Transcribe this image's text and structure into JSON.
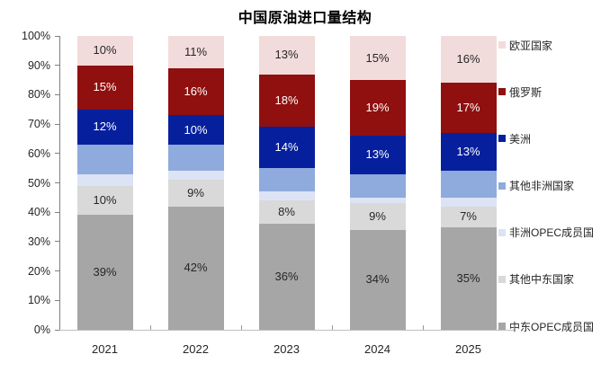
{
  "title": "中国原油进口量结构",
  "chart_data": {
    "type": "bar",
    "subtype": "stacked-percent-column",
    "title": "中国原油进口量结构",
    "categories": [
      "2021",
      "2022",
      "2023",
      "2024",
      "2025"
    ],
    "unit": "%",
    "stack_order": "bottom_to_top",
    "series": [
      {
        "name": "中东OPEC成员国",
        "color": "#a6a6a6",
        "label_color": "#262626",
        "labeled": true,
        "values": [
          39,
          42,
          36,
          34,
          35
        ]
      },
      {
        "name": "其他中东国家",
        "color": "#d9d9d9",
        "label_color": "#262626",
        "labeled": true,
        "values": [
          10,
          9,
          8,
          9,
          7
        ]
      },
      {
        "name": "非洲OPEC成员国",
        "color": "#dce3f5",
        "labeled": false,
        "values_estimated": true,
        "values": [
          4,
          3,
          3,
          2,
          3
        ]
      },
      {
        "name": "其他非洲国家",
        "color": "#8faadc",
        "labeled": false,
        "values_estimated": true,
        "values": [
          10,
          9,
          8,
          8,
          9
        ]
      },
      {
        "name": "美洲",
        "color": "#06209d",
        "label_color": "#ffffff",
        "labeled": true,
        "values": [
          12,
          10,
          14,
          13,
          13
        ]
      },
      {
        "name": "俄罗斯",
        "color": "#8f100f",
        "label_color": "#ffffff",
        "labeled": true,
        "values": [
          15,
          16,
          18,
          19,
          17
        ]
      },
      {
        "name": "欧亚国家",
        "color": "#f2dcdb",
        "label_color": "#262626",
        "labeled": true,
        "values": [
          10,
          11,
          13,
          15,
          16
        ]
      }
    ],
    "y_axis": {
      "min": 0,
      "max": 100,
      "tick_labels": [
        "0%",
        "10%",
        "20%",
        "30%",
        "40%",
        "50%",
        "60%",
        "70%",
        "80%",
        "90%",
        "100%"
      ]
    },
    "legend": {
      "position": "right",
      "items_top_to_bottom": [
        "欧亚国家",
        "俄罗斯",
        "美洲",
        "其他非洲国家",
        "非洲OPEC成员国",
        "其他中东国家",
        "中东OPEC成员国"
      ]
    },
    "grid": false
  },
  "colors": {
    "background": "#ffffff",
    "text": "#262626",
    "y_axis_line": "#808080",
    "x_axis_line": "#bfbfbf"
  }
}
